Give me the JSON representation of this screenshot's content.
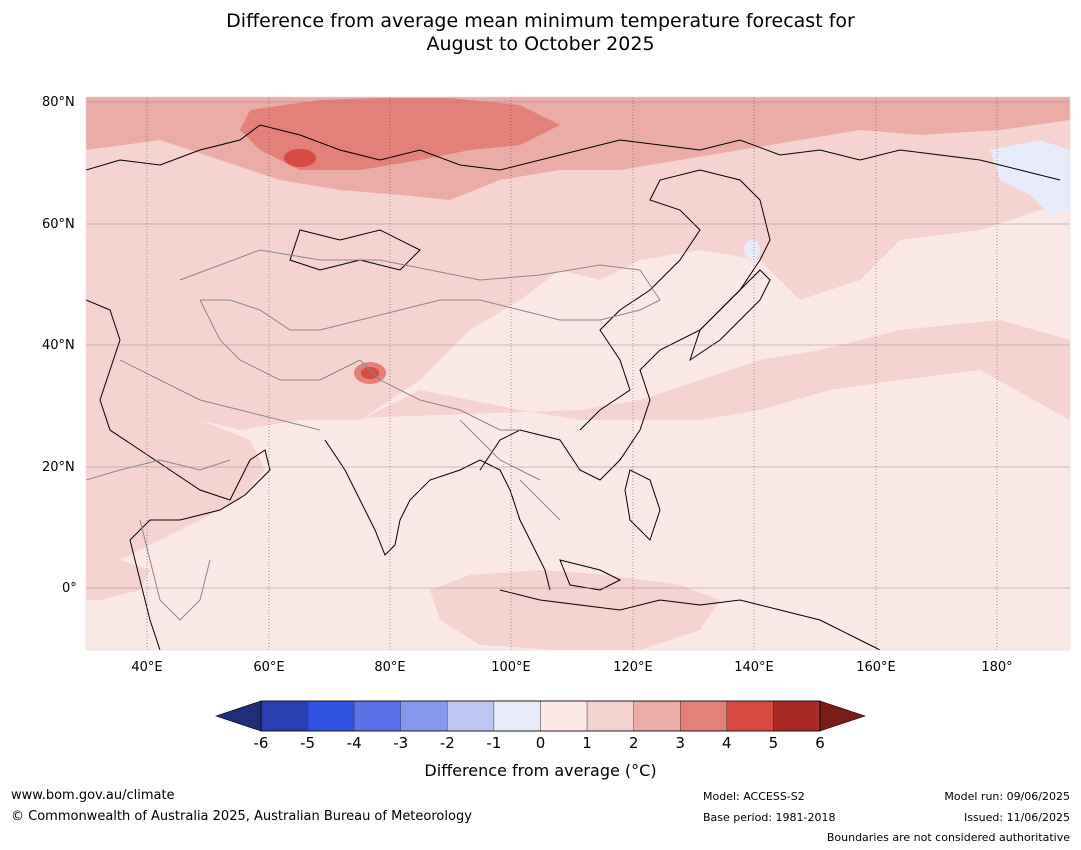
{
  "title": {
    "line1": "Difference from average mean minimum temperature forecast for",
    "line2": "August to October 2025"
  },
  "map": {
    "region": "Asia",
    "lat_labels": [
      "80°N",
      "60°N",
      "40°N",
      "20°N",
      "0°"
    ],
    "lon_labels": [
      "40°E",
      "60°E",
      "80°E",
      "100°E",
      "120°E",
      "140°E",
      "160°E",
      "180°"
    ],
    "lat_range": [
      -10,
      80
    ],
    "lon_range": [
      30,
      192
    ],
    "background_anomaly": "0 to 1",
    "features": {
      "country_boundaries": "shown",
      "coastlines": "shown",
      "gridlines": "shown"
    }
  },
  "colorbar": {
    "ticks": [
      "-6",
      "-5",
      "-4",
      "-3",
      "-2",
      "-1",
      "0",
      "1",
      "2",
      "3",
      "4",
      "5",
      "6"
    ],
    "colors": [
      "#1f2d7a",
      "#2a3fb2",
      "#3051e0",
      "#5b70e6",
      "#8697eb",
      "#bdc6f3",
      "#e8ebfa",
      "#fde9e7",
      "#f4d2d0",
      "#ebaca8",
      "#e38079",
      "#d84a42",
      "#a82a24",
      "#7a1d19"
    ],
    "label": "Difference from average (°C)",
    "extend": "both"
  },
  "footer": {
    "url": "www.bom.gov.au/climate",
    "copyright": "© Commonwealth of Australia 2025, Australian Bureau of Meteorology",
    "model": "Model: ACCESS-S2",
    "base_period": "Base period: 1981-2018",
    "model_run": "Model run: 09/06/2025",
    "issued": "Issued: 11/06/2025",
    "disclaimer": "Boundaries are not considered authoritative"
  }
}
